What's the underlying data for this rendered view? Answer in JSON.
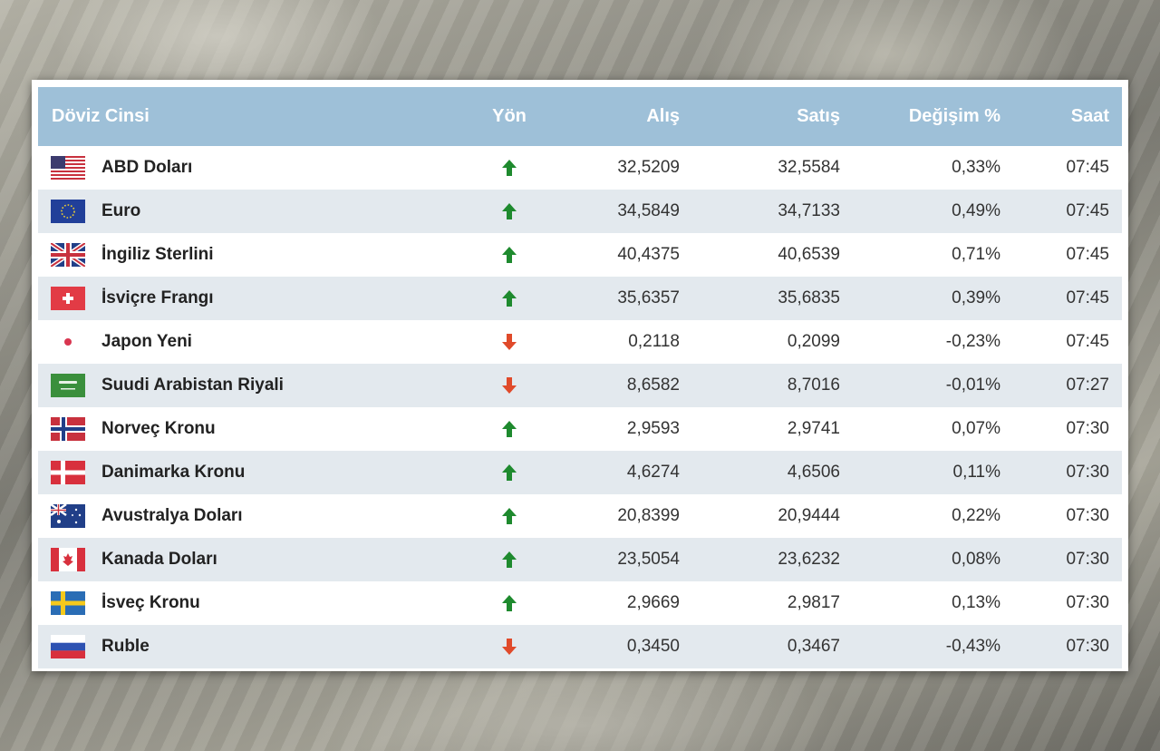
{
  "table": {
    "headers": {
      "currency": "Döviz Cinsi",
      "direction": "Yön",
      "buy": "Alış",
      "sell": "Satış",
      "change": "Değişim %",
      "time": "Saat"
    },
    "rows": [
      {
        "flag": "us-flag-icon",
        "name": "ABD Doları",
        "direction": "up",
        "buy": "32,5209",
        "sell": "32,5584",
        "change": "0,33%",
        "time": "07:45"
      },
      {
        "flag": "eu-flag-icon",
        "name": "Euro",
        "direction": "up",
        "buy": "34,5849",
        "sell": "34,7133",
        "change": "0,49%",
        "time": "07:45"
      },
      {
        "flag": "uk-flag-icon",
        "name": "İngiliz Sterlini",
        "direction": "up",
        "buy": "40,4375",
        "sell": "40,6539",
        "change": "0,71%",
        "time": "07:45"
      },
      {
        "flag": "ch-flag-icon",
        "name": "İsviçre Frangı",
        "direction": "up",
        "buy": "35,6357",
        "sell": "35,6835",
        "change": "0,39%",
        "time": "07:45"
      },
      {
        "flag": "jp-flag-icon",
        "name": "Japon Yeni",
        "direction": "down",
        "buy": "0,2118",
        "sell": "0,2099",
        "change": "-0,23%",
        "time": "07:45"
      },
      {
        "flag": "sa-flag-icon",
        "name": "Suudi Arabistan Riyali",
        "direction": "down",
        "buy": "8,6582",
        "sell": "8,7016",
        "change": "-0,01%",
        "time": "07:27"
      },
      {
        "flag": "no-flag-icon",
        "name": "Norveç Kronu",
        "direction": "up",
        "buy": "2,9593",
        "sell": "2,9741",
        "change": "0,07%",
        "time": "07:30"
      },
      {
        "flag": "dk-flag-icon",
        "name": "Danimarka Kronu",
        "direction": "up",
        "buy": "4,6274",
        "sell": "4,6506",
        "change": "0,11%",
        "time": "07:30"
      },
      {
        "flag": "au-flag-icon",
        "name": "Avustralya Doları",
        "direction": "up",
        "buy": "20,8399",
        "sell": "20,9444",
        "change": "0,22%",
        "time": "07:30"
      },
      {
        "flag": "ca-flag-icon",
        "name": "Kanada Doları",
        "direction": "up",
        "buy": "23,5054",
        "sell": "23,6232",
        "change": "0,08%",
        "time": "07:30"
      },
      {
        "flag": "se-flag-icon",
        "name": "İsveç Kronu",
        "direction": "up",
        "buy": "2,9669",
        "sell": "2,9817",
        "change": "0,13%",
        "time": "07:30"
      },
      {
        "flag": "ru-flag-icon",
        "name": "Ruble",
        "direction": "down",
        "buy": "0,3450",
        "sell": "0,3467",
        "change": "-0,43%",
        "time": "07:30"
      }
    ]
  },
  "colors": {
    "header_bg": "#9ec0d8",
    "alt_row_bg": "#e3e9ee",
    "up_arrow": "#1e8a2e",
    "down_arrow": "#e04a2a"
  }
}
